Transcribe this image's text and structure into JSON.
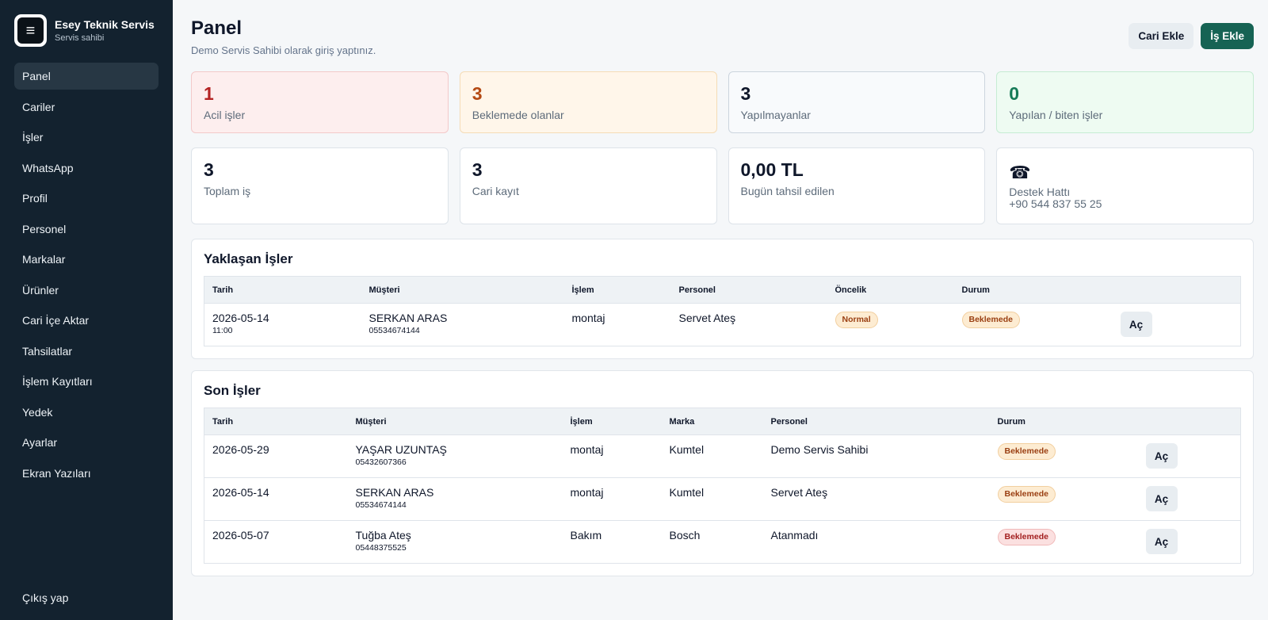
{
  "brand": {
    "name": "Esey Teknik Servis",
    "subtitle": "Servis sahibi",
    "logo_icon": "menu-icon"
  },
  "sidebar": {
    "items": [
      {
        "label": "Panel",
        "active": true
      },
      {
        "label": "Cariler"
      },
      {
        "label": "İşler"
      },
      {
        "label": "WhatsApp"
      },
      {
        "label": "Profil"
      },
      {
        "label": "Personel"
      },
      {
        "label": "Markalar"
      },
      {
        "label": "Ürünler"
      },
      {
        "label": "Cari İçe Aktar"
      },
      {
        "label": "Tahsilatlar"
      },
      {
        "label": "İşlem Kayıtları"
      },
      {
        "label": "Yedek"
      },
      {
        "label": "Ayarlar"
      },
      {
        "label": "Ekran Yazıları"
      }
    ],
    "logout": "Çıkış yap"
  },
  "header": {
    "title": "Panel",
    "subtitle": "Demo Servis Sahibi olarak giriş yaptınız.",
    "btn_add_account": "Cari Ekle",
    "btn_add_job": "İş Ekle"
  },
  "stats_row1": [
    {
      "value": "1",
      "label": "Acil işler",
      "tone": "red"
    },
    {
      "value": "3",
      "label": "Beklemede olanlar",
      "tone": "orange"
    },
    {
      "value": "3",
      "label": "Yapılmayanlar",
      "tone": "gray"
    },
    {
      "value": "0",
      "label": "Yapılan / biten işler",
      "tone": "green"
    }
  ],
  "stats_row2": {
    "total_jobs": {
      "value": "3",
      "label": "Toplam iş"
    },
    "accounts": {
      "value": "3",
      "label": "Cari kayıt"
    },
    "collected": {
      "value": "0,00 TL",
      "label": "Bugün tahsil edilen"
    },
    "support": {
      "icon": "phone-icon",
      "label": "Destek Hattı",
      "phone": "+90 544 837 55 25"
    }
  },
  "upcoming": {
    "title": "Yaklaşan İşler",
    "columns": [
      "Tarih",
      "Müşteri",
      "İşlem",
      "Personel",
      "Öncelik",
      "Durum"
    ],
    "rows": [
      {
        "date": "2026-05-14",
        "time": "11:00",
        "customer": "SERKAN ARAS",
        "phone": "05534674144",
        "operation": "montaj",
        "staff": "Servet Ateş",
        "priority": "Normal",
        "status": "Beklemede",
        "open": "Aç"
      }
    ]
  },
  "recent": {
    "title": "Son İşler",
    "columns": [
      "Tarih",
      "Müşteri",
      "İşlem",
      "Marka",
      "Personel",
      "Durum"
    ],
    "rows": [
      {
        "date": "2026-05-29",
        "customer": "YAŞAR UZUNTAŞ",
        "phone": "05432607366",
        "operation": "montaj",
        "brand": "Kumtel",
        "staff": "Demo Servis Sahibi",
        "status": "Beklemede",
        "status_tone": "orange",
        "open": "Aç"
      },
      {
        "date": "2026-05-14",
        "customer": "SERKAN ARAS",
        "phone": "05534674144",
        "operation": "montaj",
        "brand": "Kumtel",
        "staff": "Servet Ateş",
        "status": "Beklemede",
        "status_tone": "orange",
        "open": "Aç"
      },
      {
        "date": "2026-05-07",
        "customer": "Tuğba Ateş",
        "phone": "05448375525",
        "operation": "Bakım",
        "brand": "Bosch",
        "staff": "Atanmadı",
        "status": "Beklemede",
        "status_tone": "red",
        "open": "Aç"
      }
    ]
  },
  "colors": {
    "sidebar_bg": "#13222f",
    "primary": "#166354",
    "urgent": "#b42323",
    "pending": "#b44a14",
    "done": "#157a57"
  }
}
